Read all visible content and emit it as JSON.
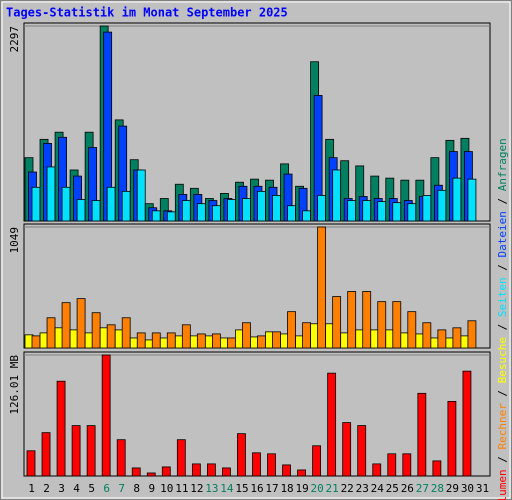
{
  "chart_data": [
    {
      "type": "bar",
      "title": "Tages-Statistik im Monat September 2025",
      "ylim": [
        0,
        2297
      ],
      "yticks": [
        2297
      ],
      "series": [
        {
          "name": "Anfragen",
          "color": "#008060",
          "values": [
            746,
            962,
            1046,
            601,
            1046,
            2297,
            1191,
            722,
            204,
            265,
            433,
            385,
            265,
            325,
            457,
            493,
            481,
            673,
            409,
            1876,
            962,
            710,
            649,
            529,
            505,
            481,
            481,
            746,
            950,
            974,
            null
          ]
        },
        {
          "name": "Dateien",
          "color": "#0040ff",
          "values": [
            577,
            914,
            986,
            529,
            866,
            2225,
            1118,
            601,
            156,
            120,
            313,
            313,
            241,
            265,
            409,
            409,
            397,
            553,
            385,
            1479,
            746,
            265,
            289,
            265,
            265,
            241,
            289,
            421,
            818,
            818,
            null
          ]
        },
        {
          "name": "Seiten",
          "color": "#00e0ff",
          "values": [
            397,
            637,
            397,
            253,
            241,
            397,
            349,
            601,
            120,
            108,
            241,
            204,
            180,
            253,
            265,
            349,
            301,
            180,
            120,
            301,
            601,
            241,
            241,
            229,
            216,
            204,
            301,
            361,
            505,
            493,
            null
          ]
        }
      ]
    },
    {
      "type": "bar",
      "ylim": [
        0,
        1049
      ],
      "yticks": [
        1049
      ],
      "series": [
        {
          "name": "Besuche",
          "color": "#ffff00",
          "values": [
            114,
            131,
            175,
            157,
            131,
            175,
            157,
            87,
            70,
            87,
            105,
            105,
            105,
            87,
            157,
            96,
            140,
            122,
            105,
            210,
            210,
            131,
            157,
            157,
            157,
            131,
            122,
            87,
            87,
            105,
            null
          ]
        },
        {
          "name": "Rechner",
          "color": "#ff8000",
          "values": [
            105,
            262,
            393,
            428,
            306,
            201,
            262,
            131,
            131,
            131,
            201,
            122,
            122,
            87,
            219,
            105,
            140,
            315,
            219,
            1049,
            446,
            490,
            490,
            402,
            402,
            315,
            219,
            157,
            175,
            236,
            null
          ]
        }
      ]
    },
    {
      "type": "bar",
      "ylim": [
        0,
        126.01
      ],
      "yticks": [
        {
          "value": 126.01,
          "label": "126.01 MB"
        }
      ],
      "categories": [
        "1",
        "2",
        "3",
        "4",
        "5",
        "6",
        "7",
        "8",
        "9",
        "10",
        "11",
        "12",
        "13",
        "14",
        "15",
        "16",
        "17",
        "18",
        "19",
        "20",
        "21",
        "22",
        "23",
        "24",
        "25",
        "26",
        "27",
        "28",
        "29",
        "30",
        "31"
      ],
      "category_colors": [
        "#000000",
        "#000000",
        "#000000",
        "#000000",
        "#000000",
        "#008060",
        "#008060",
        "#000000",
        "#000000",
        "#000000",
        "#000000",
        "#000000",
        "#008060",
        "#008060",
        "#000000",
        "#000000",
        "#000000",
        "#000000",
        "#000000",
        "#008060",
        "#008060",
        "#000000",
        "#000000",
        "#000000",
        "#000000",
        "#000000",
        "#008060",
        "#008060",
        "#000000",
        "#000000",
        "#000000"
      ],
      "legend_separator": " / ",
      "series": [
        {
          "name": "Volumen",
          "color": "#ff0000",
          "values": [
            26.25,
            45.15,
            98.7,
            52.5,
            52.5,
            126.01,
            37.8,
            8.4,
            3.15,
            9.45,
            37.8,
            12.6,
            12.6,
            8.4,
            44.1,
            24.15,
            23.1,
            11.55,
            6.3,
            31.5,
            107.1,
            55.65,
            52.5,
            12.6,
            23.1,
            23.1,
            86.1,
            15.75,
            77.7,
            109.2,
            null
          ]
        }
      ]
    }
  ]
}
